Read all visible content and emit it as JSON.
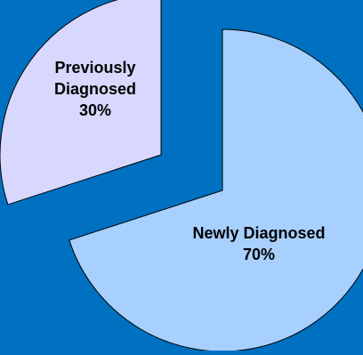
{
  "chart_data": {
    "type": "pie",
    "exploded": true,
    "background_color": "#0070c0",
    "slices": [
      {
        "label": "Previously Diagnosed",
        "label_lines": [
          "Previously",
          "Diagnosed"
        ],
        "value": 30,
        "value_label": "30%",
        "color": "#d8d8ff"
      },
      {
        "label": "Newly Diagnosed",
        "label_lines": [
          "Newly Diagnosed"
        ],
        "value": 70,
        "value_label": "70%",
        "color": "#a8d0ff"
      }
    ]
  }
}
